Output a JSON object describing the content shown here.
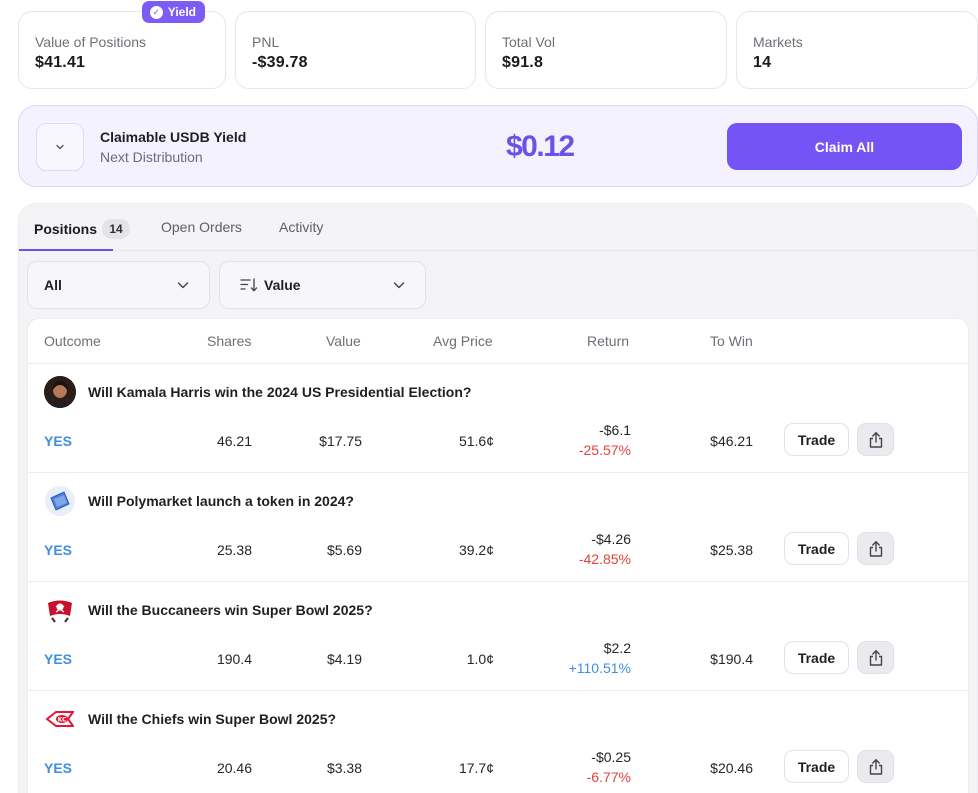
{
  "stats": [
    {
      "label": "Value of Positions",
      "value": "$41.41",
      "badge": "Yield"
    },
    {
      "label": "PNL",
      "value": "-$39.78"
    },
    {
      "label": "Total Vol",
      "value": "$91.8"
    },
    {
      "label": "Markets",
      "value": "14"
    }
  ],
  "claim": {
    "title": "Claimable USDB Yield",
    "subtitle": "Next Distribution",
    "amount": "$0.12",
    "button_label": "Claim All"
  },
  "tabs": [
    {
      "label": "Positions",
      "count": "14",
      "active": true
    },
    {
      "label": "Open Orders"
    },
    {
      "label": "Activity"
    }
  ],
  "filters": {
    "outcome_filter": "All",
    "sort_by": "Value"
  },
  "table": {
    "headers": [
      "Outcome",
      "Shares",
      "Value",
      "Avg Price",
      "Return",
      "To Win"
    ],
    "rows": [
      {
        "icon": "kamala-harris-avatar-icon",
        "title": "Will Kamala Harris win the 2024 US Presidential Election?",
        "outcome": "YES",
        "shares": "46.21",
        "value": "$17.75",
        "avg_price": "51.6¢",
        "return_value": "-$6.1",
        "return_pct": "-25.57%",
        "return_positive": false,
        "to_win": "$46.21",
        "trade_label": "Trade"
      },
      {
        "icon": "polymarket-logo-icon",
        "title": "Will Polymarket launch a token in 2024?",
        "outcome": "YES",
        "shares": "25.38",
        "value": "$5.69",
        "avg_price": "39.2¢",
        "return_value": "-$4.26",
        "return_pct": "-42.85%",
        "return_positive": false,
        "to_win": "$25.38",
        "trade_label": "Trade"
      },
      {
        "icon": "buccaneers-flag-icon",
        "title": "Will the Buccaneers win Super Bowl 2025?",
        "outcome": "YES",
        "shares": "190.4",
        "value": "$4.19",
        "avg_price": "1.0¢",
        "return_value": "$2.2",
        "return_pct": "+110.51%",
        "return_positive": true,
        "to_win": "$190.4",
        "trade_label": "Trade"
      },
      {
        "icon": "chiefs-arrowhead-icon",
        "title": "Will the Chiefs win Super Bowl 2025?",
        "outcome": "YES",
        "shares": "20.46",
        "value": "$3.38",
        "avg_price": "17.7¢",
        "return_value": "-$0.25",
        "return_pct": "-6.77%",
        "return_positive": false,
        "to_win": "$20.46",
        "trade_label": "Trade"
      }
    ]
  },
  "colors": {
    "accent": "#7454f4",
    "positive": "#3e8fe0",
    "negative": "#e2433b"
  }
}
